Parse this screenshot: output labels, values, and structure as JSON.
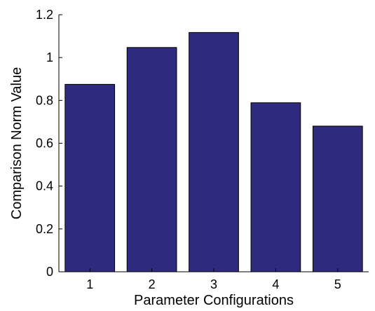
{
  "chart_data": {
    "type": "bar",
    "title": "",
    "xlabel": "Parameter Configurations",
    "ylabel": "Comparison Norm Value",
    "categories": [
      "1",
      "2",
      "3",
      "4",
      "5"
    ],
    "values": [
      0.875,
      1.047,
      1.117,
      0.789,
      0.68
    ],
    "ylim": [
      0,
      1.2
    ],
    "yticks": [
      0,
      0.2,
      0.4,
      0.6,
      0.8,
      1,
      1.2
    ],
    "ytick_labels": [
      "0",
      "0.2",
      "0.4",
      "0.6",
      "0.8",
      "1",
      "1.2"
    ],
    "bar_color": "#2e2b7e",
    "grid": false,
    "legend": "none"
  }
}
